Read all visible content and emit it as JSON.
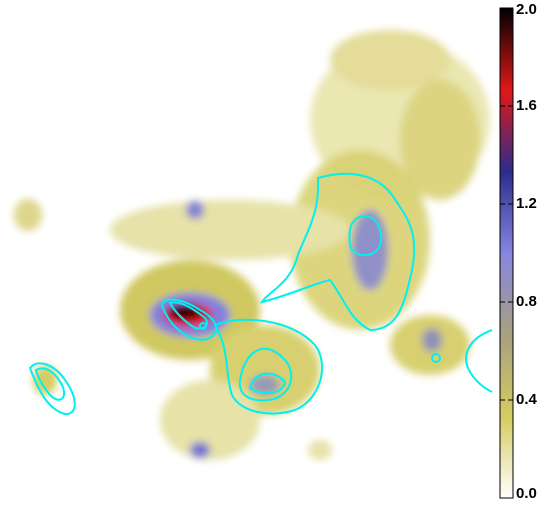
{
  "chart_data": {
    "type": "heatmap",
    "colormap": [
      "#ffffff",
      "#d4cc60",
      "#a8a080",
      "#8686e0",
      "#2c2c8c",
      "#e01818",
      "#000000"
    ],
    "zlim": [
      0,
      2
    ],
    "zticks": [
      {
        "value": 0,
        "label": "0.0"
      },
      {
        "value": 0.4,
        "label": "0.4"
      },
      {
        "value": 0.8,
        "label": "0.8"
      },
      {
        "value": 1.2,
        "label": "1.2"
      },
      {
        "value": 1.6,
        "label": "1.6"
      },
      {
        "value": 2,
        "label": "2.0"
      }
    ],
    "contour_color": "#00f0f0"
  }
}
